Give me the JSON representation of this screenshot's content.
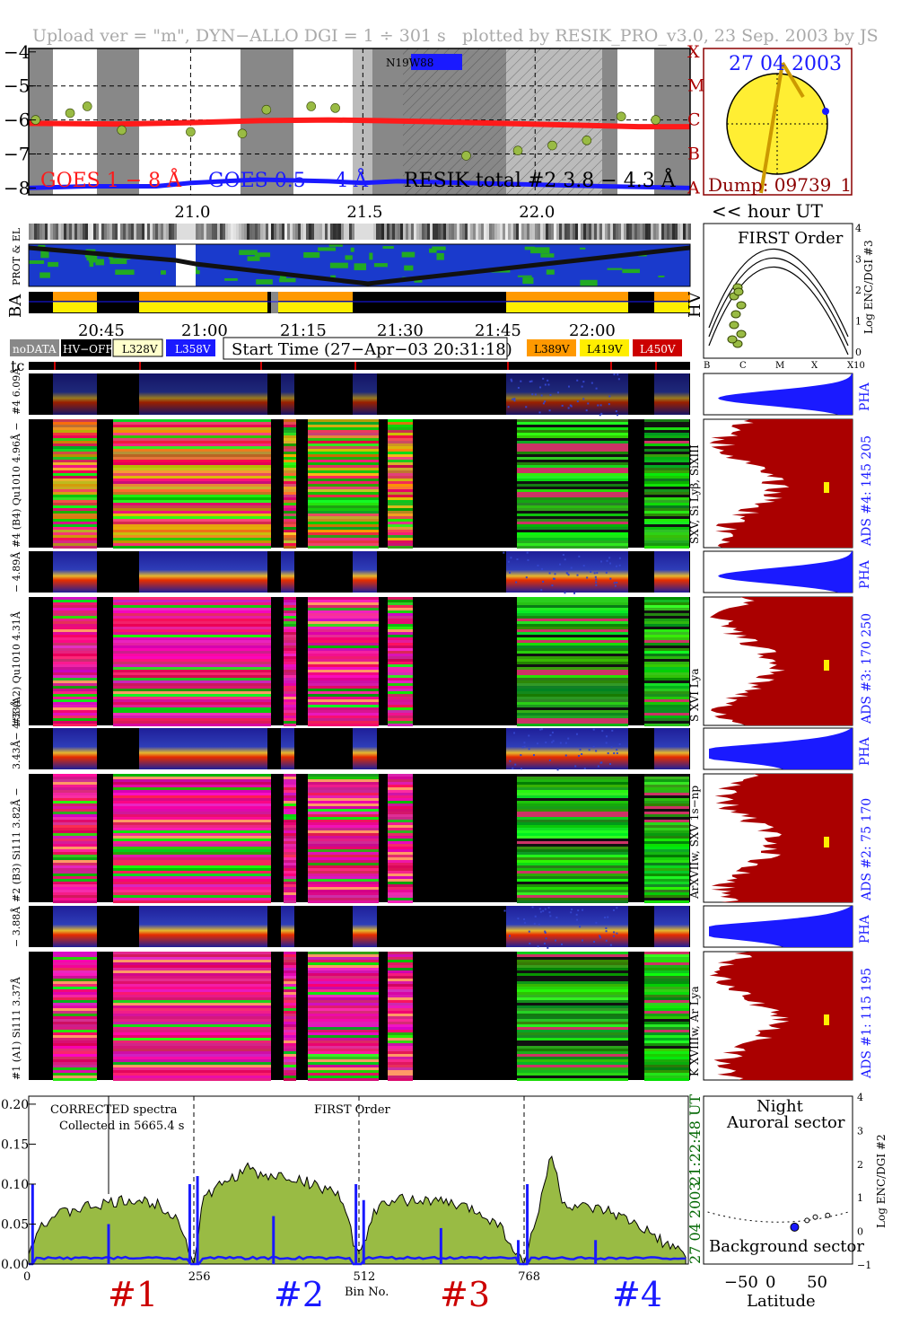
{
  "header": {
    "left": "Upload ver = \"m\", DYN−ALLO DGI =   1 ÷ 301 s",
    "right": "plotted by RESIK_PRO_v3.0, 23 Sep. 2003 by JS"
  },
  "colors": {
    "goes_long": "#ff1a1a",
    "goes_short": "#1a1aff",
    "resik": "#99bb44",
    "level_low": "#ff9900",
    "level_mid": "#ffee00",
    "level_high": "#cc0000",
    "sun": "#ffee33",
    "spectrum_fill": "#99bb44",
    "spectrum_bg": "#1a1aff",
    "ads_fill": "#aa0000",
    "pha_fill": "#1a1aff",
    "dump_text": "#8b0000"
  },
  "lightcurve_panel": {
    "goes_long_label": "GOES 1 − 8 Å",
    "goes_short_label": "GOES 0.5 − 4 Å",
    "resik_label": "RESIK total #2  3.8 − 4.3 Å",
    "noaa_label": "N19W88",
    "y_ticks": [
      "−4",
      "−5",
      "−6",
      "−7",
      "−8"
    ],
    "class_letters": [
      "X",
      "M",
      "C",
      "B",
      "A"
    ],
    "x_ticks": [
      "21.0",
      "21.5",
      "22.0"
    ],
    "hour_label": "<< hour UT"
  },
  "sun_panel": {
    "date": "27 04 2003",
    "dump": "Dump: 09739_1"
  },
  "track_panel": {
    "label_protel": "PROT & EL",
    "label_ba": "BA",
    "label_hv": "HV"
  },
  "time_axis": {
    "ticks": [
      "20:45",
      "21:00",
      "21:15",
      "21:30",
      "21:45",
      "22:00"
    ]
  },
  "legend": {
    "nodata": "noDATA",
    "hvoff": "HV−OFF",
    "l328": "L328V",
    "l358": "L358V",
    "start_time": "Start Time (27−Apr−03 20:31:18)",
    "l389": "L389V",
    "l419": "L419V",
    "l450": "L450V"
  },
  "tc_label": "tc",
  "first_order_panel": {
    "title": "FIRST Order",
    "y_ticks": [
      "4",
      "3",
      "2",
      "1",
      "0"
    ],
    "ylabel": "Log ENC/DGI #3",
    "x_ticks": [
      "B",
      "C",
      "M",
      "X",
      "X10"
    ]
  },
  "channels": [
    {
      "pha_label": "#4 6.09Å",
      "spec_label": "#4 (B4) Qu1010 4.96Å −",
      "lines": "SXV, Si Lyβ, SiXIII",
      "ads": "ADS #4:  145 205",
      "pha": "PHA"
    },
    {
      "pha_label": "− 4.89Å",
      "spec_label": "#3 (A2) Qu1010  4.31Å",
      "lines": "S XVI Lya",
      "ads": "ADS #3:  170 250",
      "pha": "PHA"
    },
    {
      "pha_label": "3.43Å− 4.33Å",
      "spec_label": "#2 (B3) Si111  3.82Å −",
      "lines": "ArXVIIw, SXV 1s−np",
      "ads": "ADS #2:   75 170",
      "pha": "PHA"
    },
    {
      "pha_label": "− 3.88Å",
      "spec_label": "#1 (A1) Si111  3.37Å",
      "lines": "K XVIIIw, Ar Lya",
      "ads": "ADS #1:  115 195",
      "pha": "PHA"
    }
  ],
  "bottom_spectrum": {
    "label1": "CORRECTED spectra",
    "label2": "Collected in  5665.4 s",
    "label3": "FIRST Order",
    "y_ticks": [
      "0.20",
      "0.15",
      "0.10",
      "0.05",
      "0.00"
    ],
    "x_ticks": [
      "0",
      "256",
      "512",
      "768"
    ],
    "xlabel": "Bin No.",
    "channel_labels": [
      "#1",
      "#2",
      "#3",
      "#4"
    ],
    "right_date": "27 04 2003",
    "right_time": "21:22:48 UT"
  },
  "latitude_panel": {
    "night": "Night",
    "auroral": "Auroral sector",
    "background": "Background sector",
    "y_ticks": [
      "4",
      "3",
      "2",
      "1",
      "0",
      "−1"
    ],
    "ylabel": "Log ENC/DGI #2",
    "x_ticks": [
      "−50",
      "0",
      "50"
    ],
    "xlabel": "Latitude"
  },
  "chart_data": [
    {
      "type": "line",
      "title": "",
      "xlabel": "hour UT",
      "ylabel": "",
      "xlim": [
        20.53,
        22.45
      ],
      "ylim": [
        -8.2,
        -3.9
      ],
      "series": [
        {
          "name": "GOES 1 − 8 Å",
          "x": [
            20.53,
            20.8,
            21.0,
            21.2,
            21.4,
            21.55,
            21.7,
            21.9,
            22.1,
            22.3,
            22.45
          ],
          "y": [
            -6.1,
            -6.12,
            -6.08,
            -6.02,
            -6.0,
            -6.02,
            -6.05,
            -6.1,
            -6.15,
            -6.2,
            -6.2
          ]
        },
        {
          "name": "GOES 0.5 − 4 Å",
          "x": [
            20.53,
            20.7,
            20.9,
            21.0,
            21.2,
            21.4,
            21.5,
            21.6,
            21.8,
            22.0,
            22.2,
            22.45
          ],
          "y": [
            -8.0,
            -7.95,
            -7.95,
            -7.85,
            -7.75,
            -7.8,
            -7.85,
            -7.8,
            -7.85,
            -7.9,
            -7.95,
            -8.0
          ]
        },
        {
          "name": "RESIK total #2  3.8 − 4.3 Å",
          "x": [
            20.55,
            20.65,
            20.7,
            20.8,
            21.0,
            21.15,
            21.22,
            21.35,
            21.42,
            21.8,
            21.95,
            22.05,
            22.15,
            22.25,
            22.35
          ],
          "y": [
            -6.0,
            -5.8,
            -5.6,
            -6.3,
            -6.35,
            -6.4,
            -5.7,
            -5.6,
            -5.65,
            -7.05,
            -6.9,
            -6.75,
            -6.6,
            -5.9,
            -6.0
          ]
        }
      ]
    },
    {
      "type": "area",
      "title": "",
      "xlabel": "Bin No.",
      "ylabel": "",
      "xlim": [
        0,
        1024
      ],
      "ylim": [
        0,
        0.21
      ],
      "series": [
        {
          "name": "",
          "x": [
            0,
            20,
            40,
            80,
            120,
            160,
            200,
            230,
            256,
            270,
            300,
            340,
            360,
            400,
            440,
            480,
            512,
            540,
            580,
            620,
            660,
            700,
            730,
            768,
            790,
            810,
            830,
            860,
            900,
            940,
            980,
            1020
          ],
          "y": [
            0.02,
            0.05,
            0.06,
            0.07,
            0.075,
            0.08,
            0.075,
            0.06,
            0.0,
            0.08,
            0.1,
            0.12,
            0.11,
            0.11,
            0.1,
            0.09,
            0.01,
            0.07,
            0.08,
            0.08,
            0.075,
            0.065,
            0.05,
            0.0,
            0.06,
            0.14,
            0.075,
            0.07,
            0.065,
            0.05,
            0.03,
            0.01
          ]
        }
      ]
    },
    {
      "type": "scatter",
      "title": "",
      "xlabel": "Latitude",
      "ylabel": "Log ENC/DGI #2",
      "xlim": [
        -90,
        90
      ],
      "ylim": [
        -1,
        4
      ],
      "series": [
        {
          "name": "",
          "x": [
            20,
            35,
            45,
            60
          ],
          "y": [
            0.1,
            0.3,
            0.4,
            0.45
          ]
        }
      ]
    }
  ]
}
